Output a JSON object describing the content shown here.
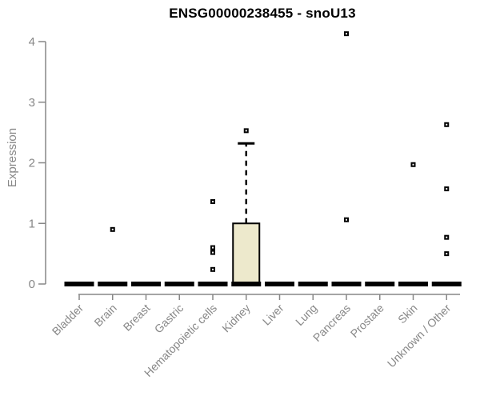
{
  "chart_data": {
    "type": "boxplot",
    "title": "ENSG00000238455 - snoU13",
    "ylabel": "Expression",
    "xlabel": "",
    "ylim": [
      0,
      4
    ],
    "yticks": [
      0,
      1,
      2,
      3,
      4
    ],
    "grid": false,
    "legend": "none",
    "colors": {
      "box_fill": "#EDE9CC",
      "box_border": "#000000",
      "median": "#000000",
      "outlier": "#000000",
      "axis_line": "#878787",
      "axis_text": "#878787",
      "title_text": "#000000",
      "background": "#ffffff"
    },
    "categories": [
      "Bladder",
      "Brain",
      "Breast",
      "Gastric",
      "Hematopoietic cells",
      "Kidney",
      "Liver",
      "Lung",
      "Pancreas",
      "Prostate",
      "Skin",
      "Unknown / Other"
    ],
    "boxes": [
      {
        "category": "Bladder",
        "q1": 0,
        "median": 0,
        "q3": 0,
        "whisker_low": 0,
        "whisker_high": 0,
        "outliers": []
      },
      {
        "category": "Brain",
        "q1": 0,
        "median": 0,
        "q3": 0,
        "whisker_low": 0,
        "whisker_high": 0,
        "outliers": [
          0.9
        ]
      },
      {
        "category": "Breast",
        "q1": 0,
        "median": 0,
        "q3": 0,
        "whisker_low": 0,
        "whisker_high": 0,
        "outliers": []
      },
      {
        "category": "Gastric",
        "q1": 0,
        "median": 0,
        "q3": 0,
        "whisker_low": 0,
        "whisker_high": 0,
        "outliers": []
      },
      {
        "category": "Hematopoietic cells",
        "q1": 0,
        "median": 0,
        "q3": 0,
        "whisker_low": 0,
        "whisker_high": 0,
        "outliers": [
          1.36,
          0.6,
          0.52,
          0.24
        ]
      },
      {
        "category": "Kidney",
        "q1": 0,
        "median": 0,
        "q3": 1.0,
        "whisker_low": 0,
        "whisker_high": 2.32,
        "outliers": [
          2.53
        ]
      },
      {
        "category": "Liver",
        "q1": 0,
        "median": 0,
        "q3": 0,
        "whisker_low": 0,
        "whisker_high": 0,
        "outliers": []
      },
      {
        "category": "Lung",
        "q1": 0,
        "median": 0,
        "q3": 0,
        "whisker_low": 0,
        "whisker_high": 0,
        "outliers": []
      },
      {
        "category": "Pancreas",
        "q1": 0,
        "median": 0,
        "q3": 0,
        "whisker_low": 0,
        "whisker_high": 0,
        "outliers": [
          4.13,
          1.06
        ]
      },
      {
        "category": "Prostate",
        "q1": 0,
        "median": 0,
        "q3": 0,
        "whisker_low": 0,
        "whisker_high": 0,
        "outliers": []
      },
      {
        "category": "Skin",
        "q1": 0,
        "median": 0,
        "q3": 0,
        "whisker_low": 0,
        "whisker_high": 0,
        "outliers": [
          1.97
        ]
      },
      {
        "category": "Unknown / Other",
        "q1": 0,
        "median": 0,
        "q3": 0,
        "whisker_low": 0,
        "whisker_high": 0,
        "outliers": [
          2.63,
          1.57,
          0.77,
          0.5
        ]
      }
    ]
  }
}
